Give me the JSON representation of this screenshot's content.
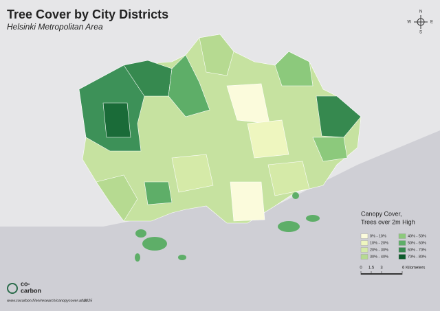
{
  "header": {
    "title": "Tree Cover by City Districts",
    "subtitle": "Helsinki Metropolitan Area"
  },
  "compass": {
    "n": "N",
    "e": "E",
    "s": "S",
    "w": "W"
  },
  "legend": {
    "title_lines": [
      "Canopy Cover,",
      "Trees over 2m High"
    ],
    "items": [
      {
        "label": "0% - 10%",
        "color": "#fbfbdc"
      },
      {
        "label": "10% - 20%",
        "color": "#eef6bf"
      },
      {
        "label": "20% - 30%",
        "color": "#d5eaa8"
      },
      {
        "label": "30% - 40%",
        "color": "#b6da91"
      },
      {
        "label": "40% - 50%",
        "color": "#8cc97c"
      },
      {
        "label": "50% - 60%",
        "color": "#5eae68"
      },
      {
        "label": "60% - 70%",
        "color": "#36894f"
      },
      {
        "label": "70% - 80%",
        "color": "#0c5a2b"
      }
    ]
  },
  "scale": {
    "labels": [
      "0",
      "1.5",
      "3",
      "6 Kilometers"
    ]
  },
  "footer": {
    "logo_top": "co-",
    "logo_bottom": "carbon",
    "url": "www.cocarbon.fi/en/research/canopycover-atlas",
    "year": "2025"
  }
}
